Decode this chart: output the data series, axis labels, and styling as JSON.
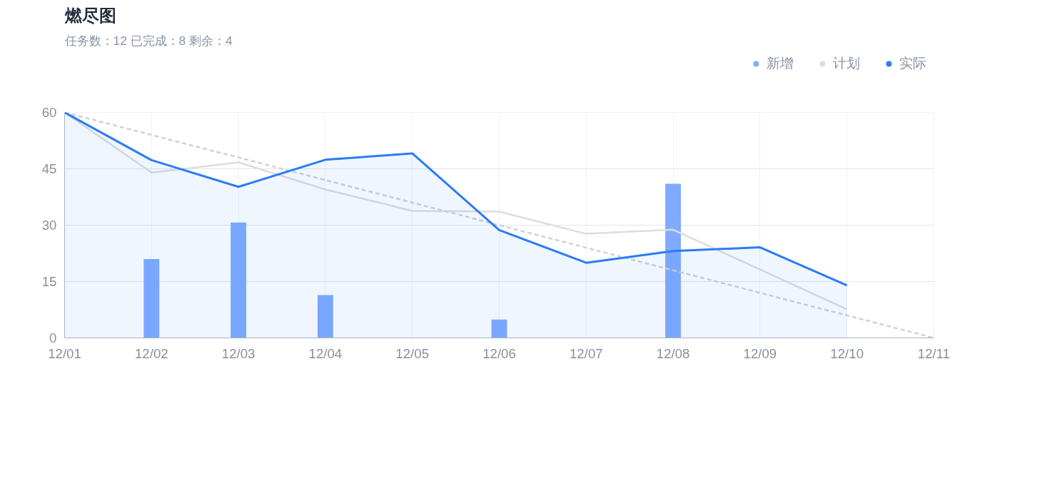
{
  "chart_data": {
    "type": "line",
    "title": "燃尽图",
    "subtitle": "任务数：12   已完成：8   剩余：4",
    "categories": [
      "12/01",
      "12/02",
      "12/03",
      "12/04",
      "12/05",
      "12/06",
      "12/07",
      "12/08",
      "12/09",
      "12/10",
      "12/11"
    ],
    "ylim": [
      0,
      60
    ],
    "yticks": [
      0,
      15,
      30,
      45,
      60
    ],
    "grid": true,
    "legend": "top right",
    "series": [
      {
        "name": "新增",
        "type": "bar",
        "color": "#80aaff",
        "values": [
          null,
          21,
          30.7,
          11.4,
          null,
          4.9,
          null,
          41,
          null,
          null,
          null
        ]
      },
      {
        "name": "计划",
        "color": "#dcdde0",
        "values": [
          60,
          44,
          46.7,
          39.5,
          33.8,
          33.6,
          27.7,
          28.8,
          18.2,
          7.6,
          null
        ]
      },
      {
        "line_style": "dashed",
        "color": "#cfd1d6",
        "values": [
          60,
          null,
          null,
          null,
          null,
          null,
          null,
          null,
          null,
          null,
          0
        ]
      },
      {
        "name": "实际",
        "type": "area",
        "color": "#2b7cf6",
        "values": [
          60,
          47.3,
          40.2,
          47.4,
          49.1,
          28.7,
          20,
          23.1,
          24.1,
          14,
          null
        ]
      }
    ]
  }
}
